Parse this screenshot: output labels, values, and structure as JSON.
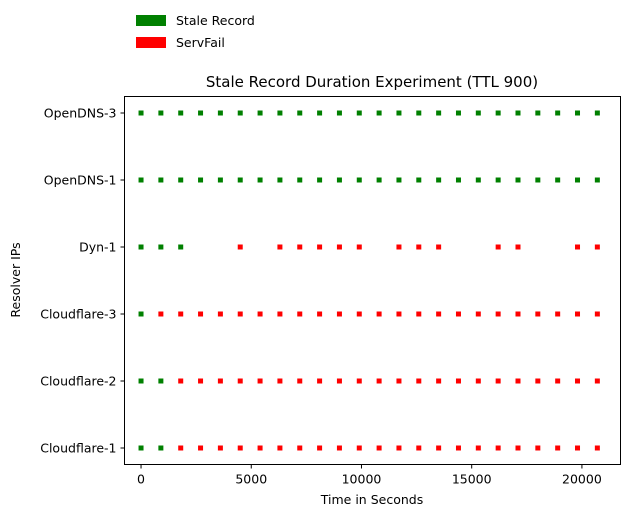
{
  "chart_data": {
    "type": "scatter",
    "title": "Stale Record Duration Experiment (TTL 900)",
    "xlabel": "Time in Seconds",
    "ylabel": "Resolver IPs",
    "xlim": [
      -750,
      21750
    ],
    "xticks": [
      0,
      5000,
      10000,
      15000,
      20000
    ],
    "xtick_labels": [
      "0",
      "5000",
      "10000",
      "15000",
      "20000"
    ],
    "categories": [
      "Cloudflare-1",
      "Cloudflare-2",
      "Cloudflare-3",
      "Dyn-1",
      "OpenDNS-1",
      "OpenDNS-3"
    ],
    "legend": {
      "placement": "above-top-left",
      "entries": [
        {
          "label": "Stale Record",
          "color": "#008000"
        },
        {
          "label": "ServFail",
          "color": "#ff0000"
        }
      ]
    },
    "series": [
      {
        "name": "Stale Record",
        "color": "#008000",
        "points": [
          {
            "resolver": "OpenDNS-3",
            "x": [
              0,
              900,
              1800,
              2700,
              3600,
              4500,
              5400,
              6300,
              7200,
              8100,
              9000,
              9900,
              10800,
              11700,
              12600,
              13500,
              14400,
              15300,
              16200,
              17100,
              18000,
              18900,
              19800,
              20700
            ]
          },
          {
            "resolver": "OpenDNS-1",
            "x": [
              0,
              900,
              1800,
              2700,
              3600,
              4500,
              5400,
              6300,
              7200,
              8100,
              9000,
              9900,
              10800,
              11700,
              12600,
              13500,
              14400,
              15300,
              16200,
              17100,
              18000,
              18900,
              19800,
              20700
            ]
          },
          {
            "resolver": "Dyn-1",
            "x": [
              0,
              900,
              1800
            ]
          },
          {
            "resolver": "Cloudflare-3",
            "x": [
              0
            ]
          },
          {
            "resolver": "Cloudflare-2",
            "x": [
              0,
              900
            ]
          },
          {
            "resolver": "Cloudflare-1",
            "x": [
              0,
              900
            ]
          }
        ]
      },
      {
        "name": "ServFail",
        "color": "#ff0000",
        "points": [
          {
            "resolver": "Dyn-1",
            "x": [
              4500,
              6300,
              7200,
              8100,
              9000,
              9900,
              11700,
              12600,
              13500,
              16200,
              17100,
              19800,
              20700
            ]
          },
          {
            "resolver": "Cloudflare-3",
            "x": [
              900,
              1800,
              2700,
              3600,
              4500,
              5400,
              6300,
              7200,
              8100,
              9000,
              9900,
              10800,
              11700,
              12600,
              13500,
              14400,
              15300,
              16200,
              17100,
              18000,
              18900,
              19800,
              20700
            ]
          },
          {
            "resolver": "Cloudflare-2",
            "x": [
              1800,
              2700,
              3600,
              4500,
              5400,
              6300,
              7200,
              8100,
              9000,
              9900,
              10800,
              11700,
              12600,
              13500,
              14400,
              15300,
              16200,
              17100,
              18000,
              18900,
              19800,
              20700
            ]
          },
          {
            "resolver": "Cloudflare-1",
            "x": [
              1800,
              2700,
              3600,
              4500,
              5400,
              6300,
              7200,
              8100,
              9000,
              9900,
              10800,
              11700,
              12600,
              13500,
              14400,
              15300,
              16200,
              17100,
              18000,
              18900,
              19800,
              20700
            ]
          }
        ]
      }
    ]
  }
}
